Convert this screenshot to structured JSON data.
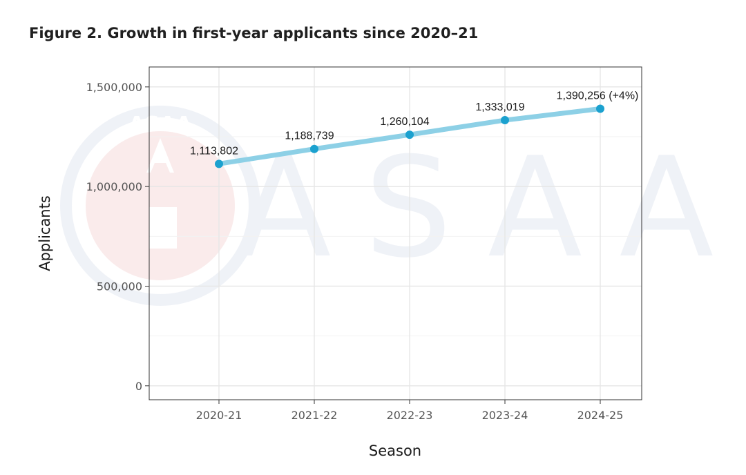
{
  "title": "Figure 2. Growth in first-year applicants since 2020–21",
  "watermark": {
    "seal_text": "ASAA",
    "wordmark": "ASAA"
  },
  "colors": {
    "line": "#8dd0e6",
    "point": "#1ba1cf",
    "grid": "#e6e6e6",
    "panel_border": "#333333"
  },
  "chart_data": {
    "type": "line",
    "title": "Figure 2. Growth in first-year applicants since 2020–21",
    "xlabel": "Season",
    "ylabel": "Applicants",
    "categories": [
      "2020-21",
      "2021-22",
      "2022-23",
      "2023-24",
      "2024-25"
    ],
    "values": [
      1113802,
      1188739,
      1260104,
      1333019,
      1390256
    ],
    "data_labels": [
      "1,113,802",
      "1,188,739",
      "1,260,104",
      "1,333,019",
      "1,390,256 (+4%)"
    ],
    "yticks": [
      0,
      500000,
      1000000,
      1500000
    ],
    "ytick_labels": [
      "0",
      "500,000",
      "1,000,000",
      "1,500,000"
    ],
    "ylim": [
      -70000,
      1600000
    ],
    "grid": true,
    "legend": "none"
  }
}
